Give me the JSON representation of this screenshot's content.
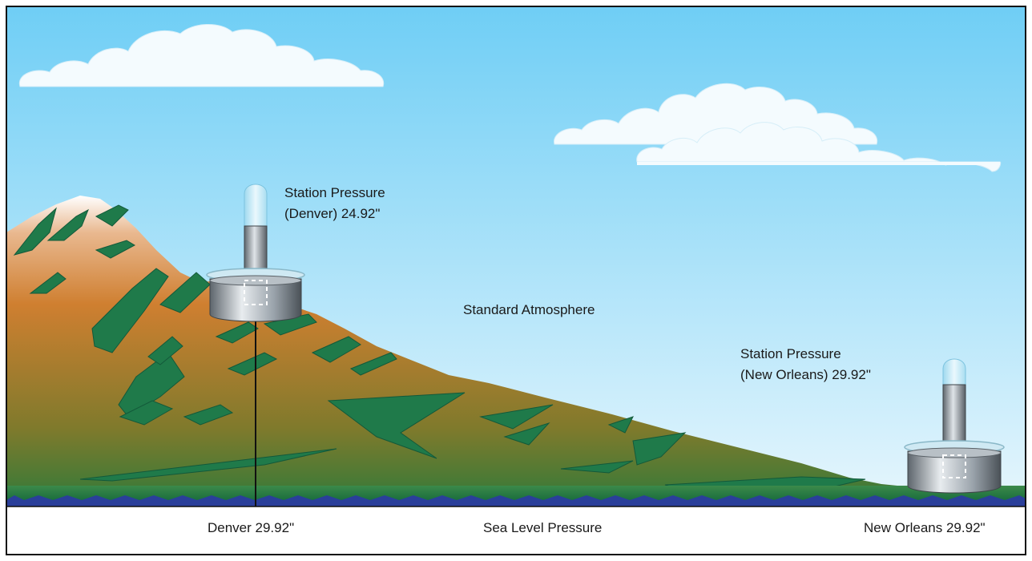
{
  "labels": {
    "denver_station_line1": "Station Pressure",
    "denver_station_line2": "(Denver) 24.92\"",
    "standard_atmosphere": "Standard Atmosphere",
    "neworleans_station_line1": "Station Pressure",
    "neworleans_station_line2": "(New Orleans) 29.92\"",
    "denver_sea_level": "Denver 29.92\"",
    "sea_level_pressure": "Sea Level Pressure",
    "neworleans_sea_level": "New Orleans 29.92\""
  },
  "colors": {
    "sky_top": "#7fd3f5",
    "sky_bottom": "#e4f5fd",
    "mountain_brown": "#c8782a",
    "mountain_green": "#1f7a4a",
    "sea_blue": "#2a3f9a",
    "mercury_gray": "#9aa3ab"
  }
}
